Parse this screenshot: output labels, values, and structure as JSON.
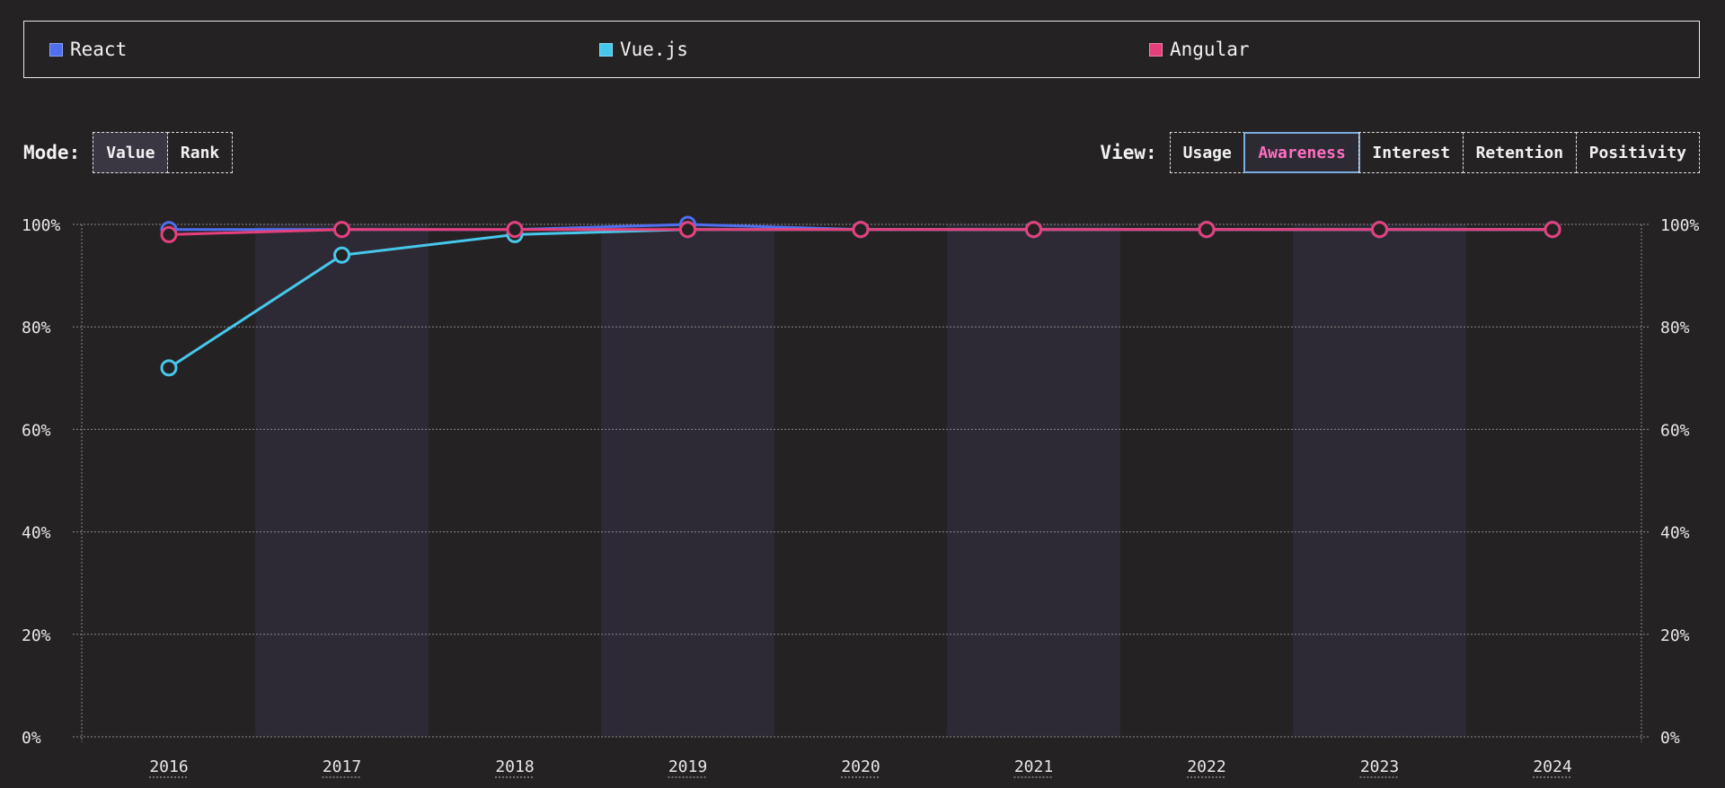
{
  "legend": [
    {
      "label": "React",
      "color": "#4f6fef"
    },
    {
      "label": "Vue.js",
      "color": "#46c8ec"
    },
    {
      "label": "Angular",
      "color": "#e5407c"
    }
  ],
  "mode": {
    "label": "Mode:",
    "options": [
      "Value",
      "Rank"
    ],
    "active": "Value"
  },
  "view": {
    "label": "View:",
    "options": [
      "Usage",
      "Awareness",
      "Interest",
      "Retention",
      "Positivity"
    ],
    "active": "Awareness"
  },
  "chart_data": {
    "type": "line",
    "x": [
      "2016",
      "2017",
      "2018",
      "2019",
      "2020",
      "2021",
      "2022",
      "2023",
      "2024"
    ],
    "ylim": [
      0,
      100
    ],
    "yticks": [
      "0%",
      "20%",
      "40%",
      "60%",
      "80%",
      "100%"
    ],
    "grid": true,
    "series": [
      {
        "name": "React",
        "color": "#4f6fef",
        "values": [
          99,
          99,
          99,
          100,
          99,
          99,
          99,
          99,
          99
        ]
      },
      {
        "name": "Vue.js",
        "color": "#46c8ec",
        "values": [
          72,
          94,
          98,
          99,
          99,
          99,
          99,
          99,
          99
        ]
      },
      {
        "name": "Angular",
        "color": "#e5407c",
        "values": [
          98,
          99,
          99,
          99,
          99,
          99,
          99,
          99,
          99
        ]
      }
    ]
  }
}
